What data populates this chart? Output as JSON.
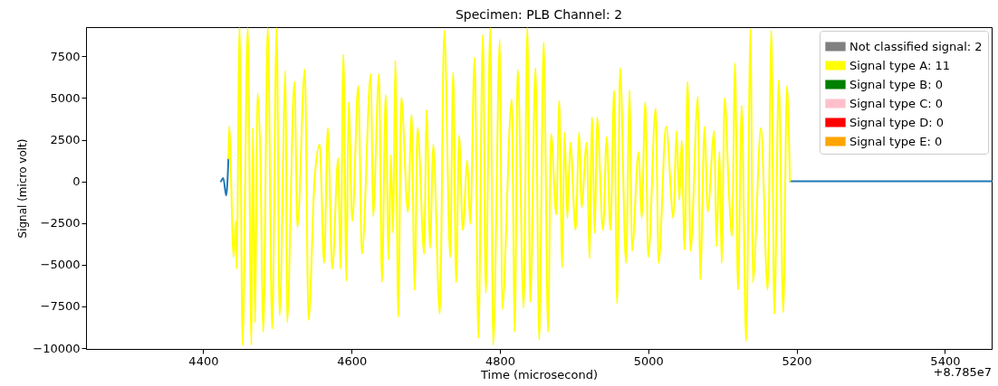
{
  "chart_data": {
    "type": "line",
    "title": "Specimen: PLB Channel: 2",
    "xlabel": "Time (microsecond)",
    "ylabel": "Signal (micro volt)",
    "annotations": [
      "+8.785e7"
    ],
    "xlim": [
      4242,
      5463
    ],
    "ylim": [
      -10050,
      9250
    ],
    "xticks": [
      4400,
      4600,
      4800,
      5000,
      5200,
      5400
    ],
    "yticks": [
      -10000,
      -7500,
      -5000,
      -2500,
      0,
      2500,
      5000,
      7500
    ],
    "grid": false,
    "legend": "top right",
    "series": [
      {
        "color": "#1f77b4",
        "x": [
          4424,
          4427,
          4431,
          4434,
          4800,
          5191,
          5463
        ],
        "values": [
          0,
          200,
          -850,
          1370,
          null,
          0,
          0
        ]
      },
      {
        "name": "Not classified signal: 2",
        "color": "#808080"
      },
      {
        "name": "Signal type A: 11",
        "color": "#ffff00",
        "x": [
          4434,
          4435,
          4441,
          4444,
          4445,
          4449,
          4453,
          4460,
          4465,
          4467,
          4470,
          4473,
          4477,
          4481,
          4487,
          4493,
          4499,
          4503,
          4511,
          4513,
          4523,
          4527,
          4537,
          4542,
          4550,
          4557,
          4563,
          4568,
          4574,
          4582,
          4585,
          4589,
          4593,
          4596,
          4601,
          4609,
          4614,
          4626,
          4629,
          4637,
          4641,
          4646,
          4650,
          4653,
          4656,
          4659,
          4663,
          4667,
          4676,
          4681,
          4685,
          4689,
          4698,
          4701,
          4706,
          4710,
          4719,
          4725,
          4733,
          4737,
          4741,
          4745,
          4750,
          4756,
          4760,
          4766,
          4771,
          4777,
          4781,
          4787,
          4791,
          4800,
          4803,
          4816,
          4820,
          4824,
          4832,
          4837,
          4841,
          4848,
          4853,
          4859,
          4865,
          4869,
          4876,
          4880,
          4884,
          4887,
          4891,
          4895,
          4902,
          4907,
          4910,
          4917,
          4921,
          4924,
          4928,
          4931,
          4939,
          4944,
          4949,
          4954,
          4958,
          4962,
          4970,
          4975,
          4978,
          4987,
          4991,
          4996,
          5000,
          5010,
          5014,
          5024,
          5034,
          5038,
          5042,
          5045,
          5049,
          5053,
          5057,
          5067,
          5070,
          5076,
          5080,
          5089,
          5092,
          5096,
          5099,
          5103,
          5109,
          5113,
          5117,
          5121,
          5126,
          5132,
          5138,
          5141,
          5152,
          5161,
          5166,
          5170,
          5176,
          5182,
          5187,
          5191
        ],
        "values": [
          1370,
          3300,
          -4530,
          -2370,
          -5240,
          9200,
          -9820,
          9200,
          -9820,
          3200,
          -8470,
          5290,
          1500,
          -9010,
          9200,
          -8850,
          9200,
          -8040,
          6640,
          -8470,
          5990,
          -2740,
          6710,
          -8310,
          0,
          2210,
          -4890,
          3200,
          -5240,
          1400,
          -5240,
          7610,
          -5970,
          4750,
          -2370,
          5720,
          -4350,
          6440,
          -2100,
          6440,
          -6040,
          5180,
          -4700,
          1580,
          -3080,
          7250,
          -8130,
          5020,
          -1830,
          4010,
          -6510,
          3200,
          -4350,
          4280,
          -3990,
          2210,
          -7930,
          9050,
          -4530,
          6530,
          -6060,
          2750,
          -2910,
          1240,
          -2540,
          7430,
          -9390,
          8780,
          -6690,
          9200,
          -9820,
          8510,
          -7660,
          4910,
          -9010,
          6710,
          -7590,
          9200,
          -7230,
          6800,
          -9480,
          8330,
          -9010,
          2840,
          -2000,
          4820,
          -5160,
          2930,
          -2200,
          2320,
          -2910,
          2930,
          -1570,
          2320,
          -4620,
          3830,
          -3090,
          3830,
          -2910,
          2660,
          -2910,
          5450,
          -7320,
          6800,
          -4890,
          5450,
          -4170,
          1760,
          -2200,
          4730,
          -4530,
          4370,
          -4890,
          3290,
          -2200,
          3020,
          -1120,
          2450,
          -4090,
          5990,
          -4170,
          5090,
          -5880,
          3290,
          -1830,
          3020,
          -3900,
          1780,
          -4890,
          5000,
          -920,
          -3280,
          7070,
          -6510,
          4550,
          -9570,
          9140,
          -6060,
          3200,
          -6510,
          9050,
          -7950,
          6080,
          -7860,
          5720,
          0
        ]
      },
      {
        "name": "Signal type B: 0",
        "color": "#008000"
      },
      {
        "name": "Signal type C: 0",
        "color": "#ffc0cb"
      },
      {
        "name": "Signal type D: 0",
        "color": "#ff0000"
      },
      {
        "name": "Signal type E: 0",
        "color": "#ffa500"
      }
    ]
  }
}
